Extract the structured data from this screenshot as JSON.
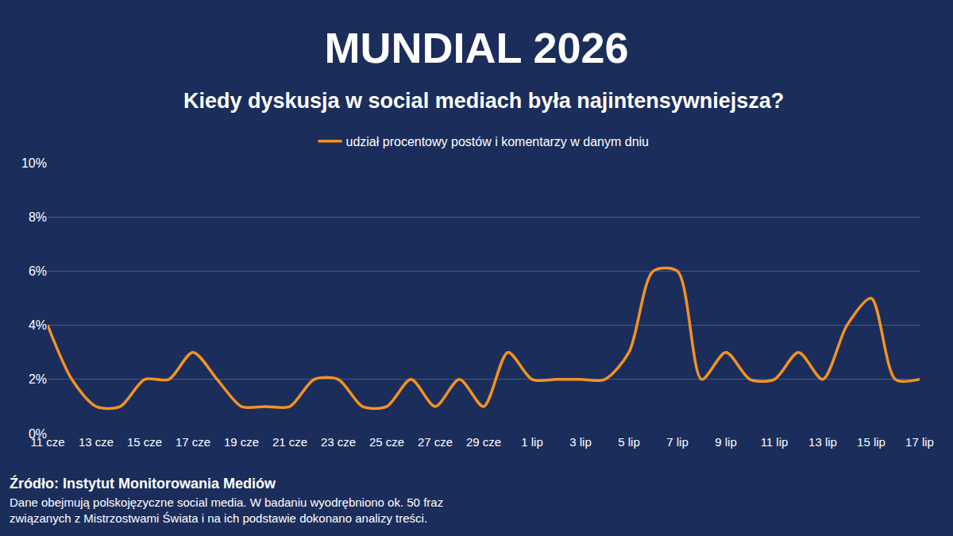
{
  "chart_data": {
    "type": "line",
    "title": "MUNDIAL 2026",
    "subtitle": "Kiedy dyskusja w social mediach była najintensywniejsza?",
    "source": "Źródło: Instytut Monitorowania Mediów",
    "note": [
      "Dane obejmują polskojęzyczne social media. W badaniu wyodrębniono ok. 50 fraz",
      "związanych z Mistrzostwami Świata i na ich podstawie dokonano analizy treści."
    ],
    "categories": [
      "11 cze",
      null,
      "13 cze",
      null,
      "15 cze",
      null,
      "17 cze",
      null,
      "19 cze",
      null,
      "21 cze",
      null,
      "23 cze",
      null,
      "25 cze",
      null,
      "27 cze",
      null,
      "29 cze",
      null,
      "1 lip",
      null,
      "3 lip",
      null,
      "5 lip",
      null,
      "7 lip",
      null,
      "9 lip",
      null,
      "11 lip",
      null,
      "13 lip",
      null,
      "15 lip",
      null,
      "17 lip"
    ],
    "series": [
      {
        "name": "udział procentowy postów i komentarzy w danym dniu",
        "color": "#f39223",
        "values": [
          4,
          2,
          1,
          1,
          2,
          2,
          3,
          2,
          1,
          1,
          1,
          2,
          2,
          1,
          1,
          2,
          1,
          2,
          1,
          3,
          2,
          2,
          2,
          2,
          3,
          6,
          6,
          2,
          3,
          2,
          2,
          3,
          2,
          4,
          5,
          2,
          2
        ]
      }
    ],
    "ylim": [
      0,
      10
    ],
    "yticks": [
      {
        "value": 0,
        "label": "0%"
      },
      {
        "value": 2,
        "label": "2%"
      },
      {
        "value": 4,
        "label": "4%"
      },
      {
        "value": 6,
        "label": "6%"
      },
      {
        "value": 8,
        "label": "8%"
      },
      {
        "value": 10,
        "label": "10%"
      }
    ],
    "grid": true,
    "legend": "top",
    "line_style": "smooth"
  }
}
